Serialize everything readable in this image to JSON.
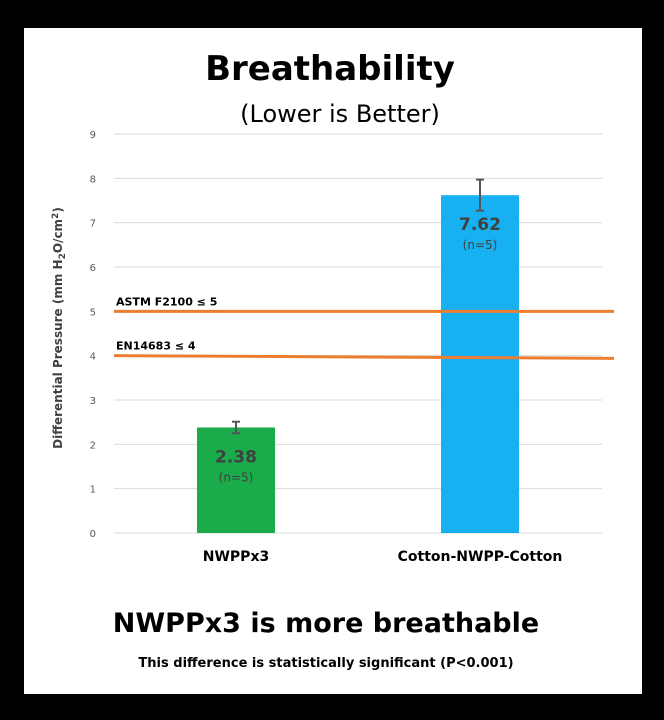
{
  "chart_data": {
    "type": "bar",
    "title": "Breathability",
    "subtitle": "(Lower is Better)",
    "ylabel_main": "Differential Pressure (mm H",
    "ylabel_sub1": "2",
    "ylabel_mid": "O/cm",
    "ylabel_sup": "2",
    "ylabel_end": ")",
    "ylim": [
      0,
      9
    ],
    "yticks": [
      "0",
      "1",
      "2",
      "3",
      "4",
      "5",
      "6",
      "7",
      "8",
      "9"
    ],
    "grid": true,
    "categories": [
      "NWPPx3",
      "Cotton-NWPP-Cotton"
    ],
    "values": [
      2.38,
      7.62
    ],
    "error": [
      0.13,
      0.35
    ],
    "value_labels": [
      "2.38",
      "7.62"
    ],
    "n_labels": [
      "(n=5)",
      "(n=5)"
    ],
    "bar_colors": [
      "#1AAB4B",
      "#17B0F0"
    ],
    "reference_lines": [
      {
        "label": "ASTM F2100  ≤ 5",
        "value": 5,
        "value_end": 5,
        "color": "#ED7D31"
      },
      {
        "label": "EN14683  ≤ 4",
        "value": 4,
        "value_end": 3.94,
        "color": "#ED7D31"
      }
    ]
  },
  "footer": {
    "headline": "NWPPx3 is more breathable",
    "note": "This difference is statistically significant (P<0.001)"
  }
}
